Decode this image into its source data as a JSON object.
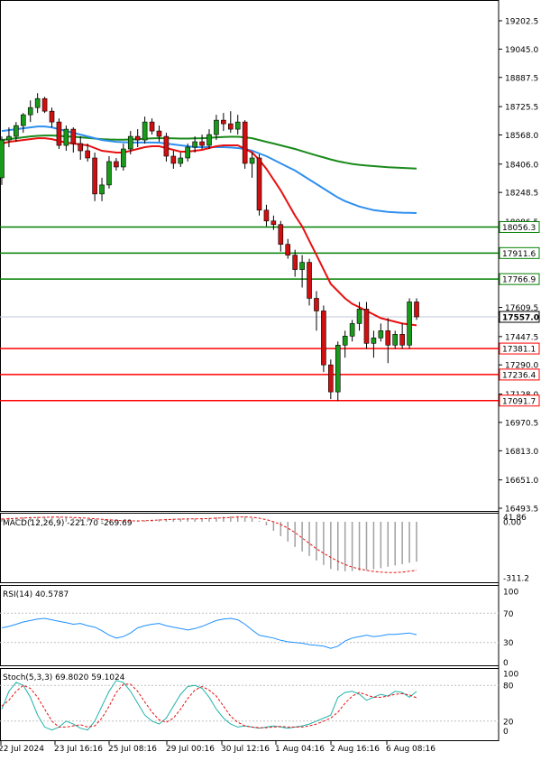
{
  "chart_data": [
    {
      "type": "candlestick",
      "title": "",
      "ylim": [
        16493.5,
        19202.5
      ],
      "y_ticks": [
        "19202.5",
        "19045.0",
        "18887.5",
        "18725.5",
        "18568.0",
        "18406.0",
        "18248.5",
        "18086.5",
        "17929.0",
        "17767.0",
        "17609.5",
        "17447.5",
        "17290.0",
        "17128.0",
        "16970.5",
        "16813.0",
        "16651.0",
        "16493.5"
      ],
      "x_ticks": [
        "22 Jul 2024",
        "23 Jul 16:16",
        "25 Jul 08:16",
        "29 Jul 00:16",
        "30 Jul 12:16",
        "1 Aug 04:16",
        "2 Aug 16:16",
        "6 Aug 08:16"
      ],
      "candles": [
        {
          "o": 18330,
          "h": 18560,
          "l": 18290,
          "c": 18540
        },
        {
          "o": 18540,
          "h": 18610,
          "l": 18500,
          "c": 18560
        },
        {
          "o": 18560,
          "h": 18640,
          "l": 18530,
          "c": 18620
        },
        {
          "o": 18620,
          "h": 18690,
          "l": 18580,
          "c": 18680
        },
        {
          "o": 18680,
          "h": 18760,
          "l": 18640,
          "c": 18720
        },
        {
          "o": 18720,
          "h": 18800,
          "l": 18690,
          "c": 18770
        },
        {
          "o": 18770,
          "h": 18780,
          "l": 18690,
          "c": 18700
        },
        {
          "o": 18700,
          "h": 18720,
          "l": 18610,
          "c": 18640
        },
        {
          "o": 18640,
          "h": 18660,
          "l": 18490,
          "c": 18510
        },
        {
          "o": 18510,
          "h": 18620,
          "l": 18480,
          "c": 18600
        },
        {
          "o": 18600,
          "h": 18610,
          "l": 18470,
          "c": 18520
        },
        {
          "o": 18520,
          "h": 18560,
          "l": 18430,
          "c": 18480
        },
        {
          "o": 18480,
          "h": 18520,
          "l": 18420,
          "c": 18440
        },
        {
          "o": 18440,
          "h": 18470,
          "l": 18200,
          "c": 18240
        },
        {
          "o": 18240,
          "h": 18330,
          "l": 18200,
          "c": 18290
        },
        {
          "o": 18290,
          "h": 18450,
          "l": 18270,
          "c": 18420
        },
        {
          "o": 18420,
          "h": 18440,
          "l": 18370,
          "c": 18390
        },
        {
          "o": 18390,
          "h": 18520,
          "l": 18370,
          "c": 18490
        },
        {
          "o": 18490,
          "h": 18590,
          "l": 18460,
          "c": 18560
        },
        {
          "o": 18560,
          "h": 18600,
          "l": 18500,
          "c": 18540
        },
        {
          "o": 18540,
          "h": 18670,
          "l": 18520,
          "c": 18640
        },
        {
          "o": 18640,
          "h": 18660,
          "l": 18570,
          "c": 18590
        },
        {
          "o": 18590,
          "h": 18620,
          "l": 18530,
          "c": 18560
        },
        {
          "o": 18560,
          "h": 18580,
          "l": 18420,
          "c": 18450
        },
        {
          "o": 18450,
          "h": 18480,
          "l": 18380,
          "c": 18410
        },
        {
          "o": 18410,
          "h": 18470,
          "l": 18390,
          "c": 18440
        },
        {
          "o": 18440,
          "h": 18520,
          "l": 18420,
          "c": 18500
        },
        {
          "o": 18500,
          "h": 18560,
          "l": 18470,
          "c": 18530
        },
        {
          "o": 18530,
          "h": 18570,
          "l": 18490,
          "c": 18510
        },
        {
          "o": 18510,
          "h": 18600,
          "l": 18490,
          "c": 18570
        },
        {
          "o": 18570,
          "h": 18680,
          "l": 18540,
          "c": 18650
        },
        {
          "o": 18650,
          "h": 18690,
          "l": 18590,
          "c": 18630
        },
        {
          "o": 18630,
          "h": 18700,
          "l": 18580,
          "c": 18600
        },
        {
          "o": 18600,
          "h": 18680,
          "l": 18570,
          "c": 18640
        },
        {
          "o": 18640,
          "h": 18650,
          "l": 18380,
          "c": 18410
        },
        {
          "o": 18410,
          "h": 18470,
          "l": 18330,
          "c": 18440
        },
        {
          "o": 18440,
          "h": 18460,
          "l": 18120,
          "c": 18150
        },
        {
          "o": 18150,
          "h": 18180,
          "l": 18060,
          "c": 18090
        },
        {
          "o": 18090,
          "h": 18120,
          "l": 18040,
          "c": 18070
        },
        {
          "o": 18070,
          "h": 18090,
          "l": 17920,
          "c": 17960
        },
        {
          "o": 17960,
          "h": 17990,
          "l": 17880,
          "c": 17900
        },
        {
          "o": 17900,
          "h": 17930,
          "l": 17780,
          "c": 17820
        },
        {
          "o": 17820,
          "h": 17900,
          "l": 17720,
          "c": 17860
        },
        {
          "o": 17860,
          "h": 17880,
          "l": 17620,
          "c": 17660
        },
        {
          "o": 17660,
          "h": 17700,
          "l": 17480,
          "c": 17590
        },
        {
          "o": 17590,
          "h": 17620,
          "l": 17250,
          "c": 17290
        },
        {
          "o": 17290,
          "h": 17320,
          "l": 17100,
          "c": 17140
        },
        {
          "o": 17140,
          "h": 17420,
          "l": 17090,
          "c": 17400
        },
        {
          "o": 17400,
          "h": 17480,
          "l": 17330,
          "c": 17450
        },
        {
          "o": 17450,
          "h": 17540,
          "l": 17420,
          "c": 17520
        },
        {
          "o": 17520,
          "h": 17640,
          "l": 17480,
          "c": 17600
        },
        {
          "o": 17600,
          "h": 17640,
          "l": 17380,
          "c": 17410
        },
        {
          "o": 17410,
          "h": 17480,
          "l": 17330,
          "c": 17440
        },
        {
          "o": 17440,
          "h": 17520,
          "l": 17420,
          "c": 17480
        },
        {
          "o": 17480,
          "h": 17550,
          "l": 17300,
          "c": 17400
        },
        {
          "o": 17400,
          "h": 17480,
          "l": 17380,
          "c": 17460
        },
        {
          "o": 17460,
          "h": 17520,
          "l": 17380,
          "c": 17400
        },
        {
          "o": 17400,
          "h": 17660,
          "l": 17380,
          "c": 17640
        },
        {
          "o": 17640,
          "h": 17660,
          "l": 17540,
          "c": 17557
        }
      ],
      "ma_fast": [
        18520,
        18530,
        18535,
        18540,
        18545,
        18550,
        18550,
        18545,
        18535,
        18525,
        18520,
        18515,
        18510,
        18495,
        18480,
        18475,
        18470,
        18470,
        18480,
        18490,
        18500,
        18505,
        18505,
        18495,
        18485,
        18475,
        18475,
        18480,
        18485,
        18495,
        18505,
        18510,
        18510,
        18510,
        18490,
        18470,
        18430,
        18380,
        18320,
        18260,
        18190,
        18120,
        18060,
        17980,
        17900,
        17820,
        17740,
        17700,
        17660,
        17630,
        17610,
        17590,
        17570,
        17550,
        17540,
        17530,
        17520,
        17515,
        17510
      ],
      "ma_slow": [
        18590,
        18595,
        18600,
        18605,
        18610,
        18615,
        18615,
        18610,
        18600,
        18590,
        18580,
        18570,
        18560,
        18550,
        18540,
        18535,
        18530,
        18528,
        18526,
        18526,
        18526,
        18526,
        18525,
        18520,
        18515,
        18510,
        18505,
        18500,
        18500,
        18500,
        18500,
        18500,
        18498,
        18495,
        18490,
        18480,
        18465,
        18450,
        18430,
        18410,
        18390,
        18370,
        18345,
        18320,
        18295,
        18270,
        18245,
        18220,
        18200,
        18185,
        18170,
        18160,
        18150,
        18145,
        18140,
        18138,
        18136,
        18135,
        18134
      ],
      "ma_long": [
        18540,
        18545,
        18550,
        18555,
        18560,
        18563,
        18565,
        18565,
        18563,
        18560,
        18558,
        18555,
        18552,
        18548,
        18545,
        18543,
        18542,
        18542,
        18543,
        18545,
        18547,
        18549,
        18550,
        18550,
        18549,
        18548,
        18548,
        18549,
        18550,
        18552,
        18555,
        18557,
        18558,
        18558,
        18555,
        18550,
        18540,
        18530,
        18520,
        18510,
        18500,
        18490,
        18478,
        18466,
        18454,
        18443,
        18432,
        18422,
        18414,
        18407,
        18402,
        18398,
        18395,
        18392,
        18389,
        18387,
        18385,
        18383,
        18381
      ],
      "level_lines": [
        {
          "label": "18056.3",
          "value": 18056.3,
          "color": "#008000"
        },
        {
          "label": "17911.6",
          "value": 17911.6,
          "color": "#008000"
        },
        {
          "label": "17766.9",
          "value": 17766.9,
          "color": "#008000"
        },
        {
          "label": "17381.1",
          "value": 17381.1,
          "color": "#ff0000"
        },
        {
          "label": "17236.4",
          "value": 17236.4,
          "color": "#ff0000"
        },
        {
          "label": "17091.7",
          "value": 17091.7,
          "color": "#ff0000"
        }
      ],
      "current_price": {
        "label": "17557.0",
        "value": 17557.0
      }
    },
    {
      "type": "histogram",
      "title": "MACD(12,26,9) -221.70 -269.69",
      "ylim": [
        -311.2,
        0.0
      ],
      "y_ticks": [
        "0.00",
        "-311.2"
      ],
      "y_top_label": "41.86",
      "histogram": [
        20,
        22,
        24,
        25,
        26,
        27,
        28,
        28,
        27,
        25,
        22,
        19,
        16,
        12,
        8,
        5,
        3,
        2,
        3,
        5,
        8,
        11,
        14,
        16,
        17,
        17,
        17,
        18,
        20,
        22,
        25,
        28,
        30,
        32,
        28,
        20,
        5,
        -20,
        -50,
        -80,
        -110,
        -140,
        -165,
        -190,
        -215,
        -240,
        -262,
        -272,
        -275,
        -274,
        -272,
        -268,
        -264,
        -258,
        -250,
        -243,
        -236,
        -228,
        -221.7
      ],
      "signal": [
        15,
        17,
        19,
        21,
        23,
        24,
        25,
        26,
        26,
        25,
        24,
        22,
        20,
        17,
        14,
        11,
        8,
        6,
        5,
        5,
        6,
        8,
        10,
        12,
        14,
        15,
        16,
        16,
        17,
        18,
        20,
        22,
        24,
        26,
        27,
        25,
        20,
        12,
        0,
        -15,
        -35,
        -60,
        -90,
        -120,
        -150,
        -175,
        -198,
        -220,
        -238,
        -252,
        -262,
        -270,
        -276,
        -280,
        -282,
        -282,
        -280,
        -275,
        -269.69
      ]
    },
    {
      "type": "line",
      "title": "RSI(14) 40.5787",
      "ylim": [
        0,
        100
      ],
      "y_ticks": [
        "100",
        "70",
        "30",
        "0"
      ],
      "values": [
        50,
        52,
        55,
        58,
        60,
        62,
        63,
        61,
        59,
        57,
        55,
        56,
        53,
        51,
        46,
        40,
        36,
        38,
        43,
        50,
        53,
        55,
        56,
        53,
        51,
        49,
        47,
        49,
        52,
        56,
        60,
        62,
        63,
        61,
        55,
        47,
        40,
        38,
        36,
        33,
        31,
        30,
        29,
        27,
        26,
        25,
        22,
        25,
        32,
        36,
        38,
        40,
        38,
        39,
        41,
        41,
        42,
        43,
        40.5787
      ]
    },
    {
      "type": "line",
      "title": "Stoch(5,3,3) 69.8020 59.1024",
      "ylim": [
        0,
        100
      ],
      "y_ticks": [
        "100",
        "80",
        "20",
        "0"
      ],
      "main": [
        40,
        70,
        85,
        80,
        60,
        30,
        10,
        5,
        10,
        20,
        15,
        8,
        5,
        20,
        45,
        70,
        88,
        85,
        70,
        50,
        30,
        20,
        15,
        25,
        45,
        65,
        78,
        80,
        75,
        60,
        40,
        25,
        15,
        10,
        12,
        10,
        8,
        10,
        12,
        10,
        8,
        10,
        12,
        15,
        20,
        25,
        30,
        60,
        68,
        70,
        65,
        55,
        60,
        65,
        62,
        70,
        68,
        60,
        69.802
      ],
      "signal": [
        45,
        55,
        70,
        80,
        75,
        60,
        40,
        20,
        10,
        10,
        12,
        14,
        10,
        12,
        25,
        45,
        68,
        82,
        82,
        70,
        52,
        35,
        22,
        18,
        25,
        40,
        58,
        72,
        78,
        72,
        62,
        45,
        28,
        18,
        12,
        10,
        9,
        9,
        10,
        11,
        10,
        10,
        10,
        12,
        15,
        20,
        25,
        35,
        50,
        62,
        68,
        64,
        60,
        60,
        62,
        65,
        66,
        64,
        59.1024
      ]
    }
  ]
}
